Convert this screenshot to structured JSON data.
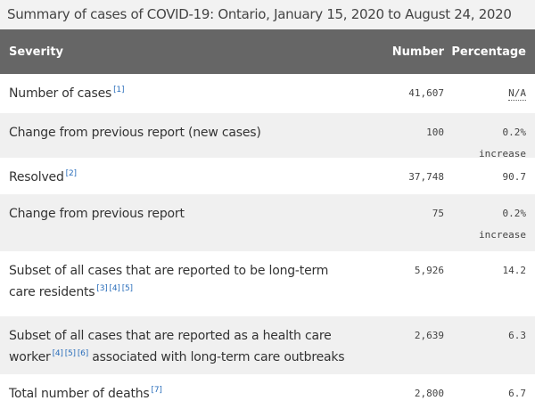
{
  "caption": "Summary of cases of COVID-19: Ontario, January 15, 2020 to August 24, 2020",
  "headers": {
    "severity": "Severity",
    "number": "Number",
    "percentage": "Percentage"
  },
  "rows": [
    {
      "label": "Number of cases",
      "refs": [
        "[1]"
      ],
      "label_after": "",
      "number": "41,607",
      "percentage": "N/A",
      "percentage_note": ""
    },
    {
      "label": "Change from previous report (new cases)",
      "refs": [],
      "label_after": "",
      "number": "100",
      "percentage": "0.2%",
      "percentage_note": "increase"
    },
    {
      "label": "Resolved",
      "refs": [
        "[2]"
      ],
      "label_after": "",
      "number": "37,748",
      "percentage": "90.7",
      "percentage_note": ""
    },
    {
      "label": "Change from previous report",
      "refs": [],
      "label_after": "",
      "number": "75",
      "percentage": "0.2%",
      "percentage_note": "increase"
    },
    {
      "label": "Subset of all cases that are reported to be long-term care residents",
      "refs": [
        "[3]",
        "[4]",
        "[5]"
      ],
      "label_after": "",
      "number": "5,926",
      "percentage": "14.2",
      "percentage_note": ""
    },
    {
      "label": "Subset of all cases that are reported as a health care worker",
      "refs": [
        "[4]",
        "[5]",
        "[6]"
      ],
      "label_after": "associated with long-term care outbreaks",
      "number": "2,639",
      "percentage": "6.3",
      "percentage_note": ""
    },
    {
      "label": "Total number of deaths",
      "refs": [
        "[7]"
      ],
      "label_after": "",
      "number": "2,800",
      "percentage": "6.7",
      "percentage_note": ""
    }
  ]
}
